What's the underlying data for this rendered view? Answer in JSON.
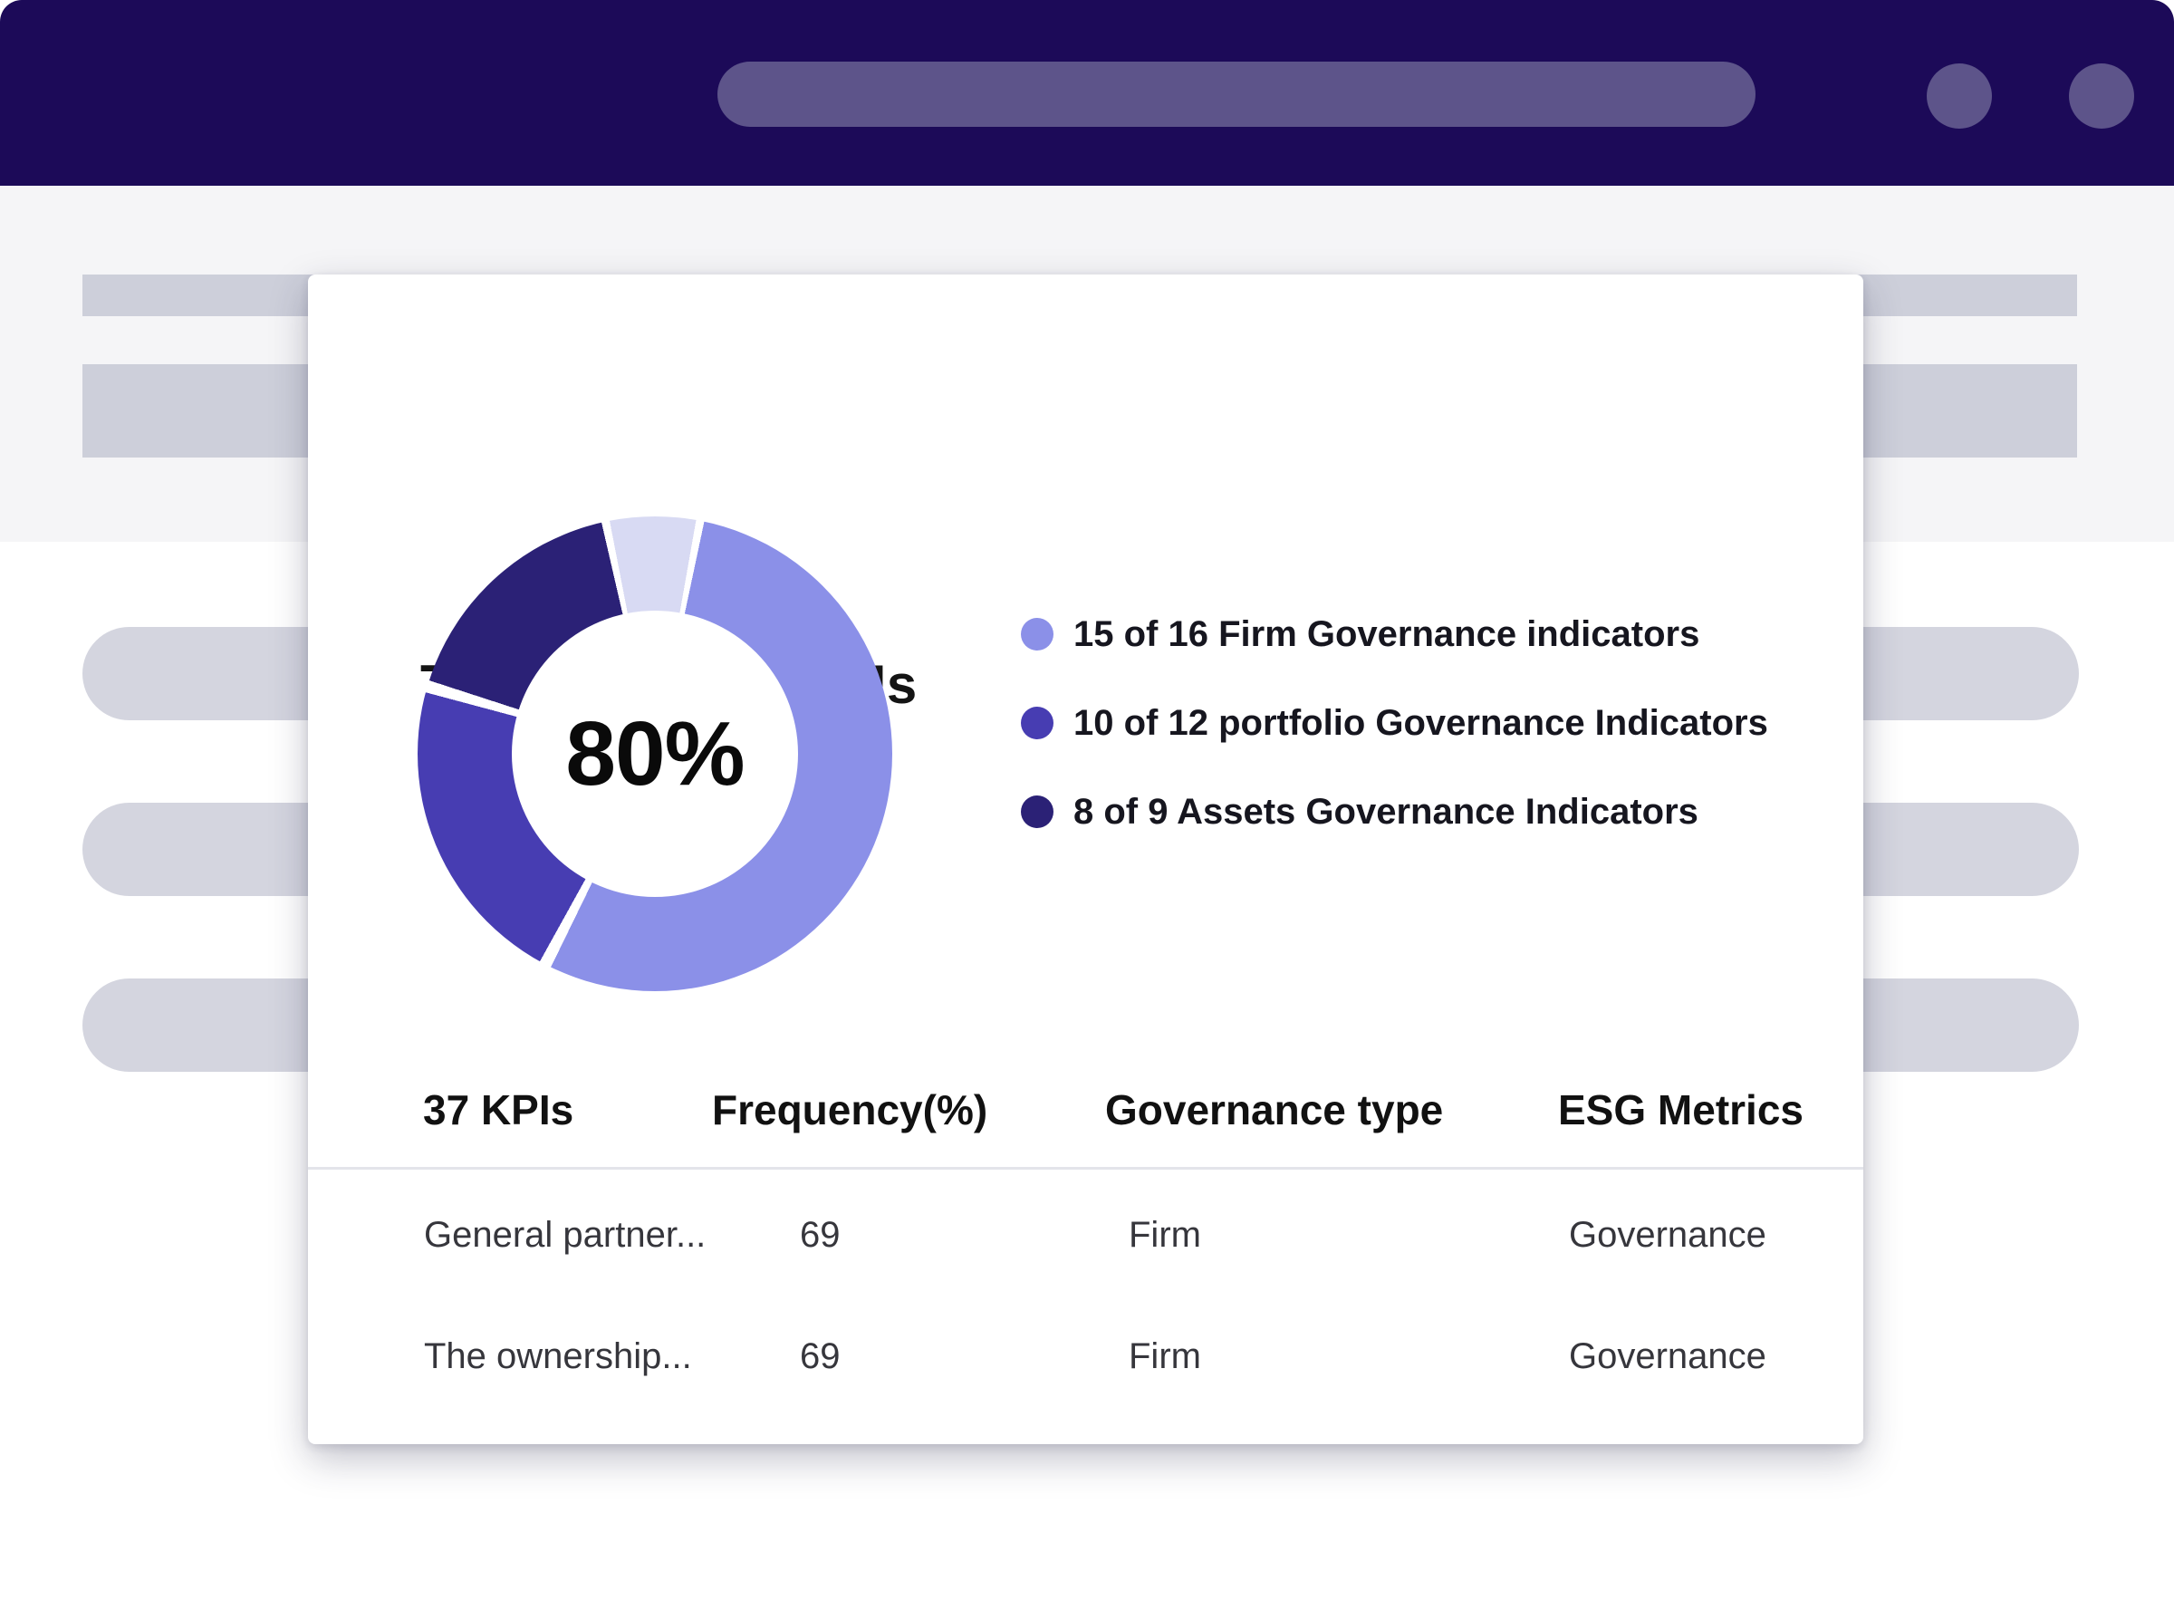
{
  "card": {
    "title": "Transparency KPIs",
    "donut_center": "80%",
    "legend": {
      "items": [
        {
          "label": "15 of 16 Firm Governance indicators",
          "color": "#8b90e8"
        },
        {
          "label": "10 of 12 portfolio Governance Indicators",
          "color": "#473db2"
        },
        {
          "label": "8 of 9 Assets Governance Indicators",
          "color": "#2b2176"
        }
      ]
    },
    "table": {
      "headers": [
        "37 KPIs",
        "Frequency(%)",
        "Governance type",
        "ESG Metrics"
      ],
      "rows": [
        {
          "kpi": "General partner...",
          "frequency": "69",
          "governance_type": "Firm",
          "esg_metric": "Governance"
        },
        {
          "kpi": "The ownership...",
          "frequency": "69",
          "governance_type": "Firm",
          "esg_metric": "Governance"
        }
      ]
    }
  },
  "chart_data": {
    "type": "pie",
    "title": "Transparency KPIs",
    "center_label": "80%",
    "total_label": "37 KPIs",
    "legend_position": "right",
    "legend": [
      {
        "label": "15 of 16 Firm Governance indicators",
        "numerator": 15,
        "denominator": 16,
        "color": "#8b90e8"
      },
      {
        "label": "10 of 12 portfolio Governance Indicators",
        "numerator": 10,
        "denominator": 12,
        "color": "#473db2"
      },
      {
        "label": "8 of 9 Assets Governance Indicators",
        "numerator": 8,
        "denominator": 9,
        "color": "#2b2176"
      }
    ],
    "start_deg": -11,
    "gap_color": "#ffffff",
    "segments_deg": [
      {
        "color": "#d8daf3",
        "start": 0,
        "end": 21
      },
      {
        "color": "#8b90e8",
        "start": 23,
        "end": 217
      },
      {
        "color": "#473db2",
        "start": 220,
        "end": 296
      },
      {
        "color": "#2b2176",
        "start": 299,
        "end": 358
      }
    ],
    "colors": {
      "browser_bar": "#1c0a58",
      "browser_controls": "#5d548a",
      "band_background": "#f5f5f7",
      "placeholder_bars": "#cdcfda",
      "placeholder_pills": "#d4d5df"
    }
  }
}
